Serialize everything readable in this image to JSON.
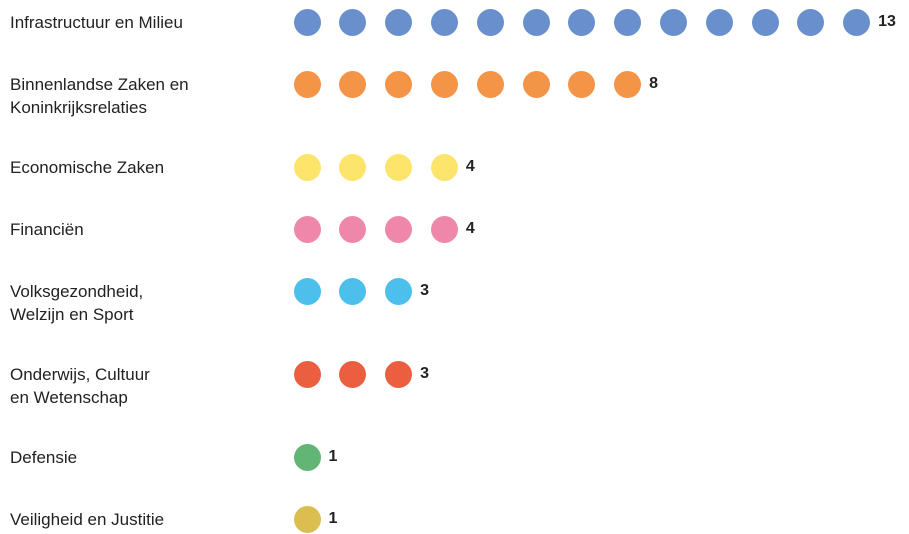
{
  "chart_data": {
    "type": "dot",
    "categories": [
      "Infrastructuur en Milieu",
      "Binnenlandse Zaken en\nKoninkrijksrelaties",
      "Economische Zaken",
      "Financiën",
      "Volksgezondheid,\nWelzijn en Sport",
      "Onderwijs, Cultuur\nen Wetenschap",
      "Defensie",
      "Veiligheid en Justitie"
    ],
    "values": [
      13,
      8,
      4,
      4,
      3,
      3,
      1,
      1
    ],
    "colors": [
      "#6990cc",
      "#f39447",
      "#fde46b",
      "#ef87ab",
      "#4dbfec",
      "#eb5e3f",
      "#63b575",
      "#dcbd4f"
    ]
  }
}
